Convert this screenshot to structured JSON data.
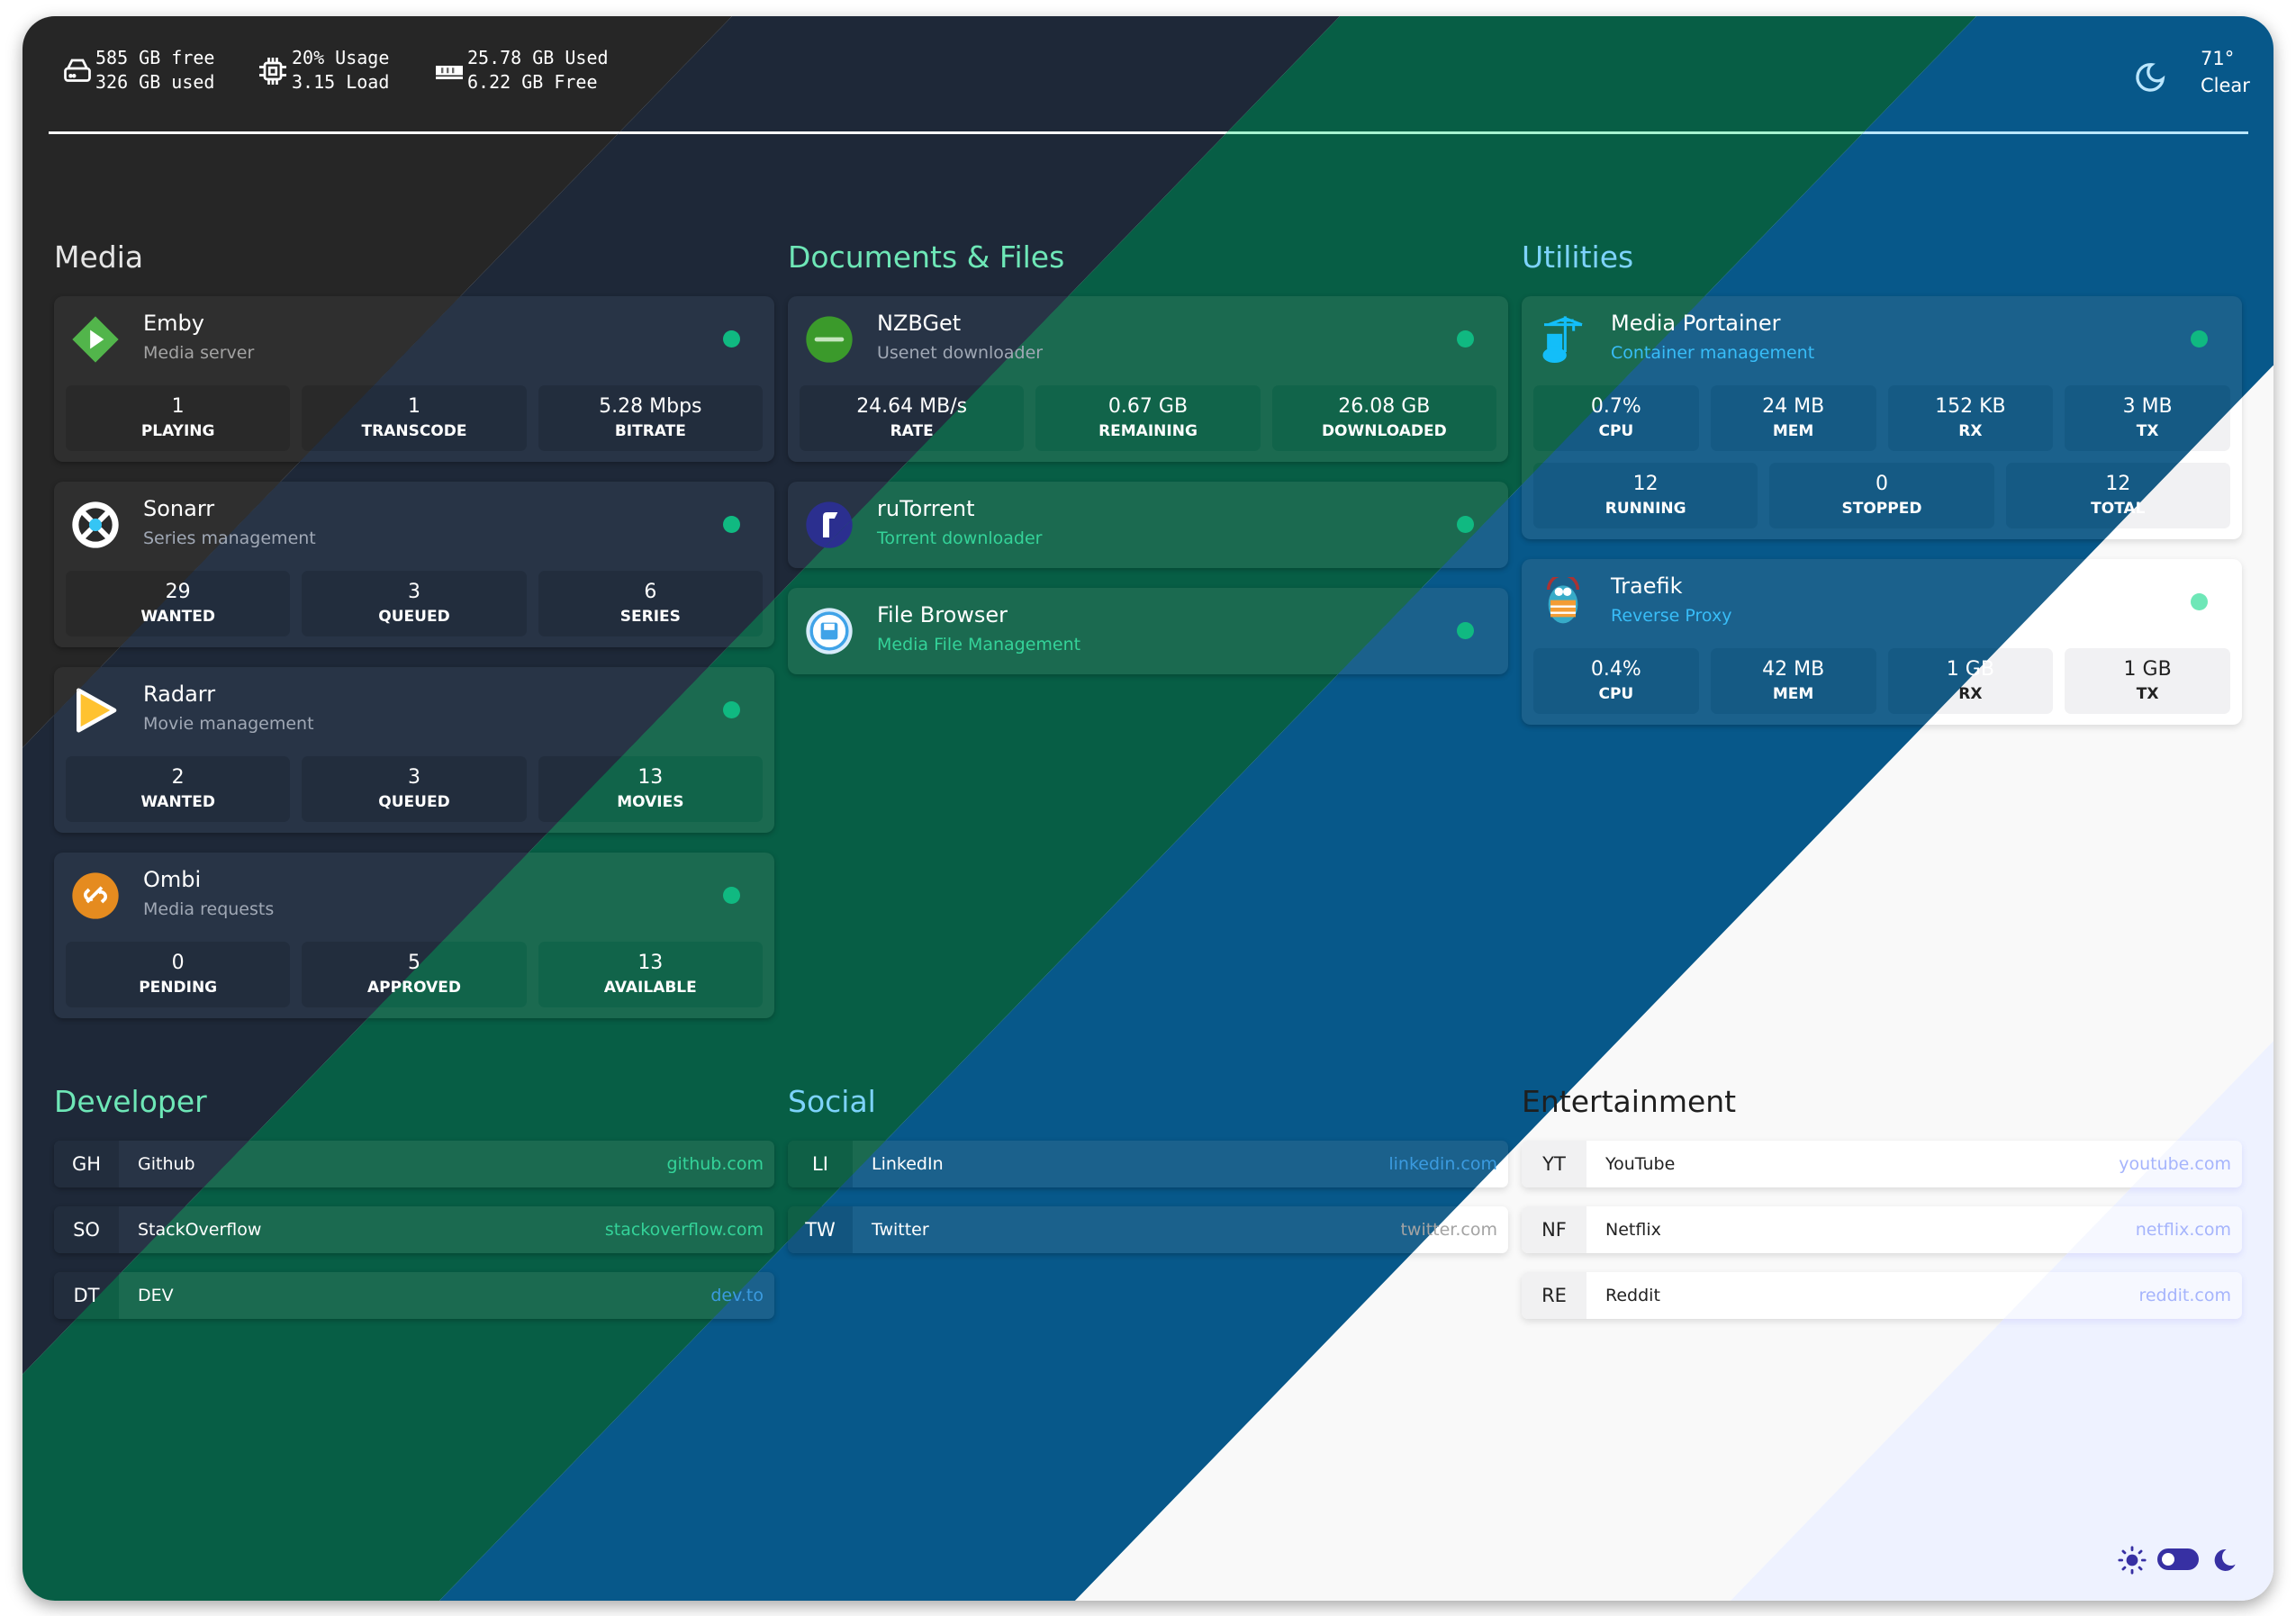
{
  "header": {
    "stats": [
      {
        "icon": "drive-icon",
        "line1": "585 GB free",
        "line2": "326 GB used"
      },
      {
        "icon": "cpu-icon",
        "line1": "20% Usage",
        "line2": "3.15 Load"
      },
      {
        "icon": "memory-icon",
        "line1": "25.78 GB Used",
        "line2": "6.22 GB Free"
      }
    ],
    "weather": {
      "icon": "moon-icon",
      "temp": "71°",
      "condition": "Clear"
    }
  },
  "services": [
    {
      "title": "Media",
      "cards": [
        {
          "name": "Emby",
          "subtitle": "Media server",
          "icon": "emby-icon",
          "status": "online",
          "stats": [
            [
              {
                "value": "1",
                "label": "PLAYING"
              },
              {
                "value": "1",
                "label": "TRANSCODE"
              },
              {
                "value": "5.28 Mbps",
                "label": "BITRATE"
              }
            ]
          ]
        },
        {
          "name": "Sonarr",
          "subtitle": "Series management",
          "icon": "sonarr-icon",
          "status": "online",
          "stats": [
            [
              {
                "value": "29",
                "label": "WANTED"
              },
              {
                "value": "3",
                "label": "QUEUED"
              },
              {
                "value": "6",
                "label": "SERIES"
              }
            ]
          ]
        },
        {
          "name": "Radarr",
          "subtitle": "Movie management",
          "icon": "radarr-icon",
          "status": "online",
          "stats": [
            [
              {
                "value": "2",
                "label": "WANTED"
              },
              {
                "value": "3",
                "label": "QUEUED"
              },
              {
                "value": "13",
                "label": "MOVIES"
              }
            ]
          ]
        },
        {
          "name": "Ombi",
          "subtitle": "Media requests",
          "icon": "ombi-icon",
          "status": "online",
          "stats": [
            [
              {
                "value": "0",
                "label": "PENDING"
              },
              {
                "value": "5",
                "label": "APPROVED"
              },
              {
                "value": "13",
                "label": "AVAILABLE"
              }
            ]
          ]
        }
      ]
    },
    {
      "title": "Documents & Files",
      "cards": [
        {
          "name": "NZBGet",
          "subtitle": "Usenet downloader",
          "icon": "nzbget-icon",
          "status": "online",
          "stats": [
            [
              {
                "value": "24.64 MB/s",
                "label": "RATE"
              },
              {
                "value": "0.67 GB",
                "label": "REMAINING"
              },
              {
                "value": "26.08 GB",
                "label": "DOWNLOADED"
              }
            ]
          ]
        },
        {
          "name": "ruTorrent",
          "subtitle": "Torrent downloader",
          "icon": "rutorrent-icon",
          "status": "online",
          "stats": []
        },
        {
          "name": "File Browser",
          "subtitle": "Media File Management",
          "icon": "filebrowser-icon",
          "status": "online",
          "stats": []
        }
      ]
    },
    {
      "title": "Utilities",
      "cards": [
        {
          "name": "Media Portainer",
          "subtitle": "Container management",
          "icon": "portainer-icon",
          "status": "online",
          "stats": [
            [
              {
                "value": "0.7%",
                "label": "CPU"
              },
              {
                "value": "24 MB",
                "label": "MEM"
              },
              {
                "value": "152 KB",
                "label": "RX"
              },
              {
                "value": "3 MB",
                "label": "TX"
              }
            ],
            [
              {
                "value": "12",
                "label": "RUNNING"
              },
              {
                "value": "0",
                "label": "STOPPED"
              },
              {
                "value": "12",
                "label": "TOTAL"
              }
            ]
          ]
        },
        {
          "name": "Traefik",
          "subtitle": "Reverse Proxy",
          "icon": "traefik-icon",
          "status": "online",
          "stats": [
            [
              {
                "value": "0.4%",
                "label": "CPU"
              },
              {
                "value": "42 MB",
                "label": "MEM"
              },
              {
                "value": "1 GB",
                "label": "RX"
              },
              {
                "value": "1 GB",
                "label": "TX"
              }
            ]
          ]
        }
      ]
    }
  ],
  "bookmarks": [
    {
      "title": "Developer",
      "items": [
        {
          "abbr": "GH",
          "name": "Github",
          "url": "github.com"
        },
        {
          "abbr": "SO",
          "name": "StackOverflow",
          "url": "stackoverflow.com"
        },
        {
          "abbr": "DT",
          "name": "DEV",
          "url": "dev.to"
        }
      ]
    },
    {
      "title": "Social",
      "items": [
        {
          "abbr": "LI",
          "name": "LinkedIn",
          "url": "linkedin.com"
        },
        {
          "abbr": "TW",
          "name": "Twitter",
          "url": "twitter.com"
        }
      ]
    },
    {
      "title": "Entertainment",
      "items": [
        {
          "abbr": "YT",
          "name": "YouTube",
          "url": "youtube.com"
        },
        {
          "abbr": "NF",
          "name": "Netflix",
          "url": "netflix.com"
        },
        {
          "abbr": "RE",
          "name": "Reddit",
          "url": "reddit.com"
        }
      ]
    }
  ],
  "theme_toggle": {
    "light_icon": "sun-icon",
    "dark_icon": "moon-icon",
    "state": "light"
  },
  "colors": {
    "status_online": "#10b981",
    "theme_accent": "#3730a3"
  }
}
